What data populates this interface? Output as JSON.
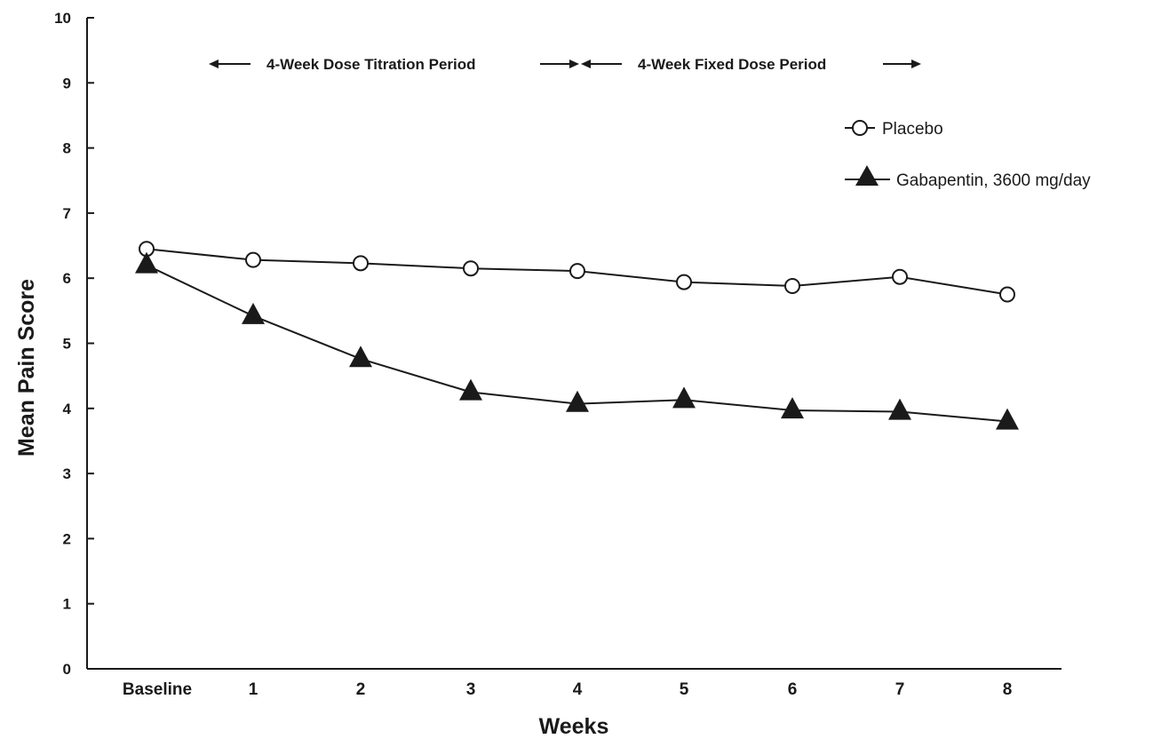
{
  "chart_data": {
    "type": "line",
    "title": "",
    "xlabel": "Weeks",
    "ylabel": "Mean Pain Score",
    "categories": [
      "Baseline",
      "1",
      "2",
      "3",
      "4",
      "5",
      "6",
      "7",
      "8"
    ],
    "y_ticks": [
      "0",
      "1",
      "2",
      "3",
      "4",
      "5",
      "6",
      "7",
      "8",
      "9",
      "10"
    ],
    "ylim": [
      0,
      10
    ],
    "grid": false,
    "legend_position": "top-right",
    "series": [
      {
        "name": "Placebo",
        "marker": "open-circle",
        "color": "#1a1a1a",
        "values": [
          6.45,
          6.28,
          6.23,
          6.15,
          6.11,
          5.94,
          5.88,
          6.02,
          5.75
        ]
      },
      {
        "name": "Gabapentin, 3600 mg/day",
        "marker": "filled-triangle",
        "color": "#1a1a1a",
        "values": [
          6.2,
          5.42,
          4.76,
          4.25,
          4.07,
          4.13,
          3.97,
          3.95,
          3.8
        ]
      }
    ],
    "annotations": {
      "titration_period": "4-Week Dose Titration Period",
      "fixed_period": "4-Week Fixed Dose Period"
    }
  }
}
